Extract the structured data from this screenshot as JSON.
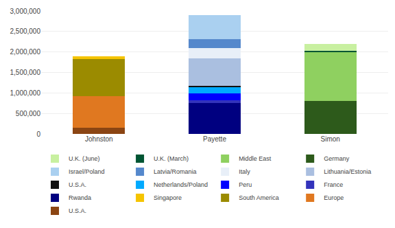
{
  "chart_data": {
    "type": "bar",
    "stacked": true,
    "categories": [
      "Johnston",
      "Payette",
      "Simon"
    ],
    "series": [
      {
        "name": "U.S.A.",
        "color": "#8B4513",
        "values": [
          150000,
          0,
          0
        ]
      },
      {
        "name": "Europe",
        "color": "#E07820",
        "values": [
          770000,
          0,
          0
        ]
      },
      {
        "name": "South America",
        "color": "#9B8B00",
        "values": [
          900000,
          0,
          0
        ]
      },
      {
        "name": "Singapore",
        "color": "#F5C400",
        "values": [
          80000,
          0,
          0
        ]
      },
      {
        "name": "Rwanda",
        "color": "#000080",
        "values": [
          0,
          760000,
          0
        ]
      },
      {
        "name": "France",
        "color": "#3333BB",
        "values": [
          0,
          65000,
          0
        ]
      },
      {
        "name": "Peru",
        "color": "#0000FF",
        "values": [
          0,
          160000,
          0
        ]
      },
      {
        "name": "Netherlands/Poland",
        "color": "#00AAFF",
        "values": [
          0,
          160000,
          0
        ]
      },
      {
        "name": "U.S.A.",
        "color": "#111111",
        "values": [
          0,
          25000,
          0
        ]
      },
      {
        "name": "Lithuania/Estonia",
        "color": "#AABFE0",
        "values": [
          0,
          680000,
          0
        ]
      },
      {
        "name": "Italy",
        "color": "#E8EFF8",
        "values": [
          0,
          240000,
          0
        ]
      },
      {
        "name": "Latvia/Romania",
        "color": "#5588CC",
        "values": [
          0,
          215000,
          0
        ]
      },
      {
        "name": "Israel/Poland",
        "color": "#AAD0F0",
        "values": [
          0,
          595000,
          0
        ]
      },
      {
        "name": "Germany",
        "color": "#2D5A1B",
        "values": [
          0,
          0,
          800000
        ]
      },
      {
        "name": "Middle East",
        "color": "#8FD060",
        "values": [
          0,
          0,
          1200000
        ]
      },
      {
        "name": "U.K. (March)",
        "color": "#005533",
        "values": [
          0,
          0,
          28000
        ]
      },
      {
        "name": "U.K. (June)",
        "color": "#C8F0A0",
        "values": [
          0,
          0,
          172000
        ]
      }
    ],
    "ylim": [
      0,
      3000000
    ],
    "yticks": [
      0,
      {
        "value": 500000,
        "label": "500,000"
      },
      {
        "value": 1000000,
        "label": "1,000,000"
      },
      {
        "value": 1500000,
        "label": "1,500,000"
      },
      {
        "value": 2000000,
        "label": "2,000,000"
      },
      {
        "value": 2500000,
        "label": "2,500,000"
      },
      {
        "value": 3000000,
        "label": "3,000,000"
      }
    ],
    "grid": true,
    "legend": "bottom"
  }
}
